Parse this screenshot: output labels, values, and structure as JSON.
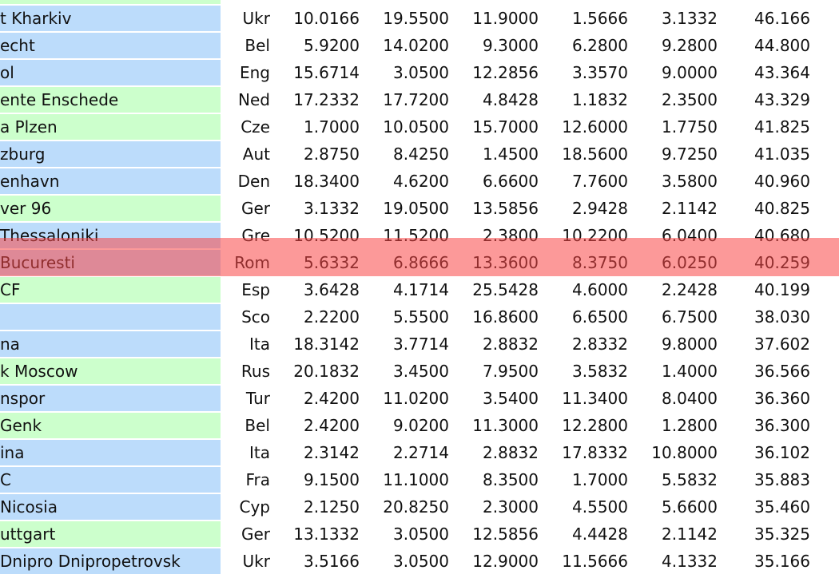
{
  "table": {
    "highlight_color": "#ff8080",
    "rows": [
      {
        "name": "",
        "country": "",
        "v": [
          "",
          "",
          "",
          "",
          ""
        ],
        "total": "",
        "color": "green"
      },
      {
        "name": "t Kharkiv",
        "country": "Ukr",
        "v": [
          "10.0166",
          "19.5500",
          "11.9000",
          "1.5666",
          "3.1332"
        ],
        "total": "46.166",
        "color": "blue"
      },
      {
        "name": "echt",
        "country": "Bel",
        "v": [
          "5.9200",
          "14.0200",
          "9.3000",
          "6.2800",
          "9.2800"
        ],
        "total": "44.800",
        "color": "blue"
      },
      {
        "name": "ol",
        "country": "Eng",
        "v": [
          "15.6714",
          "3.0500",
          "12.2856",
          "3.3570",
          "9.0000"
        ],
        "total": "43.364",
        "color": "blue"
      },
      {
        "name": "ente Enschede",
        "country": "Ned",
        "v": [
          "17.2332",
          "17.7200",
          "4.8428",
          "1.1832",
          "2.3500"
        ],
        "total": "43.329",
        "color": "green"
      },
      {
        "name": "a Plzen",
        "country": "Cze",
        "v": [
          "1.7000",
          "10.0500",
          "15.7000",
          "12.6000",
          "1.7750"
        ],
        "total": "41.825",
        "color": "green"
      },
      {
        "name": "zburg",
        "country": "Aut",
        "v": [
          "2.8750",
          "8.4250",
          "1.4500",
          "18.5600",
          "9.7250"
        ],
        "total": "41.035",
        "color": "blue"
      },
      {
        "name": "enhavn",
        "country": "Den",
        "v": [
          "18.3400",
          "4.6200",
          "6.6600",
          "7.7600",
          "3.5800"
        ],
        "total": "40.960",
        "color": "blue"
      },
      {
        "name": "ver 96",
        "country": "Ger",
        "v": [
          "3.1332",
          "19.0500",
          "13.5856",
          "2.9428",
          "2.1142"
        ],
        "total": "40.825",
        "color": "green"
      },
      {
        "name": "Thessaloniki",
        "country": "Gre",
        "v": [
          "10.5200",
          "11.5200",
          "2.3800",
          "10.2200",
          "6.0400"
        ],
        "total": "40.680",
        "color": "blue"
      },
      {
        "name": " Bucuresti",
        "country": "Rom",
        "v": [
          "5.6332",
          "6.8666",
          "13.3600",
          "8.3750",
          "6.0250"
        ],
        "total": "40.259",
        "color": "blue",
        "highlighted": true
      },
      {
        "name": " CF",
        "country": "Esp",
        "v": [
          "3.6428",
          "4.1714",
          "25.5428",
          "4.6000",
          "2.2428"
        ],
        "total": "40.199",
        "color": "green"
      },
      {
        "name": "",
        "country": "Sco",
        "v": [
          "2.2200",
          "5.5500",
          "16.8600",
          "6.6500",
          "6.7500"
        ],
        "total": "38.030",
        "color": "blue"
      },
      {
        "name": "na",
        "country": "Ita",
        "v": [
          "18.3142",
          "3.7714",
          "2.8832",
          "2.8332",
          "9.8000"
        ],
        "total": "37.602",
        "color": "blue"
      },
      {
        "name": "k Moscow",
        "country": "Rus",
        "v": [
          "20.1832",
          "3.4500",
          "7.9500",
          "3.5832",
          "1.4000"
        ],
        "total": "36.566",
        "color": "green"
      },
      {
        "name": "nspor",
        "country": "Tur",
        "v": [
          "2.4200",
          "11.0200",
          "3.5400",
          "11.3400",
          "8.0400"
        ],
        "total": "36.360",
        "color": "blue"
      },
      {
        "name": " Genk",
        "country": "Bel",
        "v": [
          "2.4200",
          "9.0200",
          "11.3000",
          "12.2800",
          "1.2800"
        ],
        "total": "36.300",
        "color": "green"
      },
      {
        "name": "ina",
        "country": "Ita",
        "v": [
          "2.3142",
          "2.2714",
          "2.8832",
          "17.8332",
          "10.8000"
        ],
        "total": "36.102",
        "color": "blue"
      },
      {
        "name": "C",
        "country": "Fra",
        "v": [
          "9.1500",
          "11.1000",
          "8.3500",
          "1.7000",
          "5.5832"
        ],
        "total": "35.883",
        "color": "blue"
      },
      {
        "name": "Nicosia",
        "country": "Cyp",
        "v": [
          "2.1250",
          "20.8250",
          "2.3000",
          "4.5500",
          "5.6600"
        ],
        "total": "35.460",
        "color": "blue"
      },
      {
        "name": "uttgart",
        "country": "Ger",
        "v": [
          "13.1332",
          "3.0500",
          "12.5856",
          "4.4428",
          "2.1142"
        ],
        "total": "35.325",
        "color": "green"
      },
      {
        "name": "Dnipro Dnipropetrovsk",
        "country": "Ukr",
        "v": [
          "3.5166",
          "3.0500",
          "12.9000",
          "11.5666",
          "4.1332"
        ],
        "total": "35.166",
        "color": "blue"
      }
    ]
  }
}
